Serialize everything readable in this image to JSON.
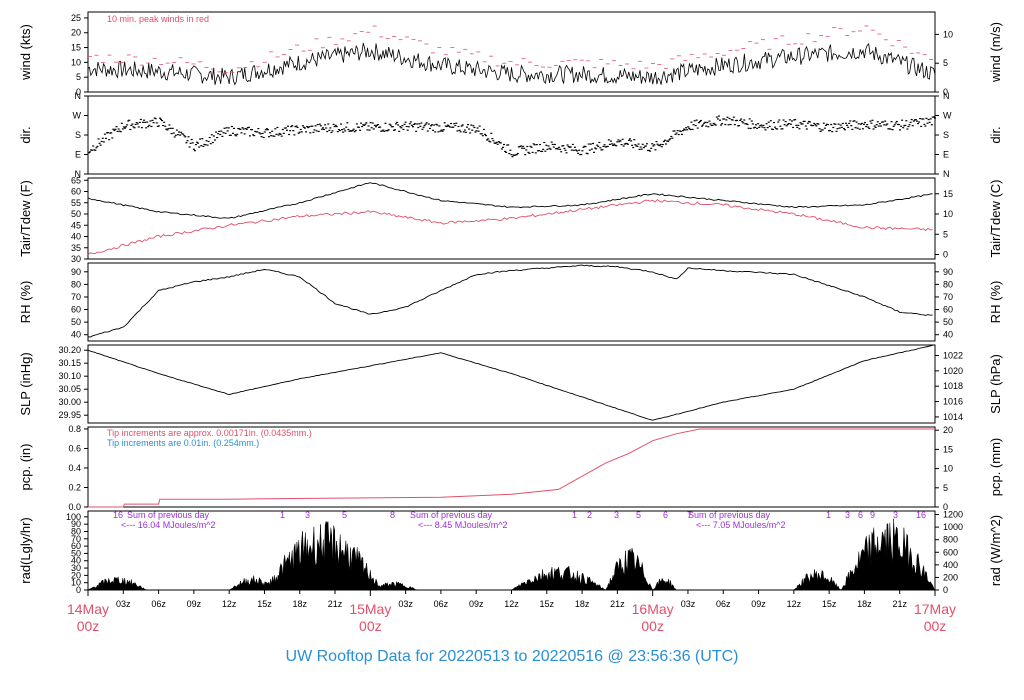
{
  "title": "UW Rooftop Data for 20220513  to  20220516 @ 23:56:36  (UTC)",
  "colors": {
    "black": "#000000",
    "red": "#e0506a",
    "blue": "#2a8fd6",
    "purple": "#9b30d9",
    "date_red": "#e0506a"
  },
  "x_axis": {
    "ticks": [
      "03z",
      "06z",
      "09z",
      "12z",
      "15z",
      "18z",
      "21z",
      "03z",
      "06z",
      "09z",
      "12z",
      "15z",
      "18z",
      "21z",
      "03z",
      "06z",
      "09z",
      "12z",
      "15z",
      "18z",
      "21z"
    ],
    "day_labels": [
      {
        "date": "14May",
        "hour": "00z"
      },
      {
        "date": "15May",
        "hour": "00z"
      },
      {
        "date": "16May",
        "hour": "00z"
      },
      {
        "date": "17May",
        "hour": "00z"
      }
    ]
  },
  "chart_data": [
    {
      "type": "line",
      "id": "wind",
      "ylabel": "wind (kts)",
      "ylabel_right": "wind (m/s)",
      "yticks": [
        "0",
        "5",
        "10",
        "15",
        "20",
        "25"
      ],
      "yticks_right": [
        "0",
        "5",
        "10"
      ],
      "ylim": [
        0,
        27
      ],
      "annotation": "10 min. peak winds in red",
      "x_hours": [
        0,
        6,
        12,
        18,
        24,
        30,
        36,
        42,
        48,
        54,
        60,
        66,
        72
      ],
      "series": [
        {
          "values": [
            8,
            7,
            5,
            10,
            14,
            9,
            6,
            6,
            5,
            9,
            12,
            14,
            6
          ]
        },
        {
          "values": [
            11,
            10,
            7,
            14,
            20,
            13,
            9,
            9,
            8,
            13,
            17,
            21,
            9
          ]
        }
      ]
    },
    {
      "type": "scatter",
      "id": "dir",
      "ylabel": "dir.",
      "ylabel_right": "dir.",
      "yticks": [
        "N",
        "E",
        "S",
        "W",
        "N"
      ],
      "yticks_right": [
        "N",
        "E",
        "S",
        "W",
        "N"
      ],
      "ylim": [
        0,
        360
      ],
      "x_hours": [
        0,
        3,
        6,
        9,
        12,
        15,
        18,
        21,
        24,
        27,
        30,
        33,
        36,
        39,
        42,
        45,
        48,
        51,
        54,
        57,
        60,
        63,
        66,
        69,
        72
      ],
      "values": [
        110,
        225,
        240,
        130,
        200,
        190,
        205,
        215,
        215,
        220,
        215,
        210,
        100,
        130,
        110,
        150,
        120,
        220,
        250,
        225,
        230,
        215,
        230,
        225,
        245
      ]
    },
    {
      "type": "line",
      "id": "temp",
      "ylabel": "Tair/Tdew (F)",
      "ylabel_right": "Tair/Tdew (C)",
      "yticks": [
        "30",
        "35",
        "40",
        "45",
        "50",
        "55",
        "60",
        "65"
      ],
      "yticks_right": [
        "0",
        "5",
        "10",
        "15"
      ],
      "ylim": [
        30,
        66
      ],
      "x_hours": [
        0,
        6,
        12,
        18,
        24,
        30,
        36,
        42,
        48,
        54,
        60,
        66,
        72
      ],
      "series": [
        {
          "name": "Tair",
          "values": [
            57,
            51,
            48,
            55,
            64,
            56,
            53,
            54,
            59,
            56,
            53,
            54,
            59
          ]
        },
        {
          "name": "Tdew",
          "values": [
            32,
            40,
            45,
            49,
            51,
            46,
            48,
            52,
            56,
            54,
            50,
            44,
            43
          ]
        }
      ]
    },
    {
      "type": "line",
      "id": "rh",
      "ylabel": "RH (%)",
      "ylabel_right": "RH (%)",
      "yticks": [
        "40",
        "50",
        "60",
        "70",
        "80",
        "90"
      ],
      "yticks_right": [
        "40",
        "50",
        "60",
        "70",
        "80",
        "90"
      ],
      "ylim": [
        35,
        97
      ],
      "x_hours": [
        0,
        3,
        6,
        9,
        12,
        15,
        18,
        21,
        24,
        27,
        30,
        33,
        36,
        39,
        42,
        45,
        48,
        50,
        51,
        54,
        60,
        66,
        69,
        72
      ],
      "values": [
        38,
        46,
        75,
        82,
        86,
        92,
        86,
        65,
        56,
        62,
        75,
        88,
        91,
        93,
        95,
        94,
        90,
        84,
        93,
        91,
        88,
        70,
        58,
        55
      ]
    },
    {
      "type": "line",
      "id": "slp",
      "ylabel": "SLP (inHg)",
      "ylabel_right": "SLP (hPa)",
      "yticks": [
        "29.95",
        "30.00",
        "30.05",
        "30.10",
        "30.15",
        "30.20"
      ],
      "yticks_right": [
        "1014",
        "1016",
        "1018",
        "1020",
        "1022"
      ],
      "ylim": [
        29.92,
        30.22
      ],
      "x_hours": [
        0,
        6,
        12,
        18,
        24,
        30,
        36,
        42,
        48,
        54,
        60,
        66,
        72
      ],
      "values": [
        30.2,
        30.11,
        30.03,
        30.09,
        30.14,
        30.19,
        30.11,
        30.02,
        29.93,
        30.0,
        30.05,
        30.16,
        30.22
      ]
    },
    {
      "type": "line",
      "id": "pcp",
      "ylabel": "pcp. (in)",
      "ylabel_right": "pcp. (mm)",
      "yticks": [
        "0.0",
        "0.2",
        "0.4",
        "0.6",
        "0.8"
      ],
      "yticks_right": [
        "0",
        "5",
        "10",
        "15",
        "20"
      ],
      "ylim": [
        0,
        0.82
      ],
      "annotations": [
        "Tip increments are approx. 0.00171in. (0.0435mm.)",
        "Tip increments are 0.01in. (0.254mm.)"
      ],
      "x_hours": [
        0,
        3,
        3.1,
        6,
        6.1,
        12,
        20,
        30,
        36,
        40,
        44,
        46,
        48,
        50,
        52,
        54,
        60,
        72
      ],
      "values": [
        0,
        0,
        0.03,
        0.03,
        0.08,
        0.08,
        0.09,
        0.1,
        0.13,
        0.18,
        0.45,
        0.55,
        0.68,
        0.75,
        0.8,
        0.8,
        0.8,
        0.8
      ]
    },
    {
      "type": "area",
      "id": "rad",
      "ylabel": "rad(Lgly/hr)",
      "ylabel_right": "rad (W/m^2)",
      "yticks": [
        "0",
        "10",
        "20",
        "30",
        "40",
        "50",
        "60",
        "70",
        "80",
        "90",
        "100"
      ],
      "yticks_right": [
        "0",
        "200",
        "400",
        "600",
        "800",
        "1000",
        "1200"
      ],
      "ylim": [
        0,
        108
      ],
      "annotations": [
        {
          "count": "16",
          "sum": "Sum of previous day",
          "total": "<--- 16.04 MJoules/m^2"
        },
        {
          "count": "",
          "sum": "Sum of previous day",
          "total": "<--- 8.45 MJoules/m^2"
        },
        {
          "count": "",
          "sum": "Sum of previous day",
          "total": "<--- 7.05 MJoules/m^2"
        }
      ],
      "tick_labels_top": [
        "1",
        "3",
        "5",
        "8",
        "1",
        "2",
        "3",
        "5",
        "6",
        "7",
        "1",
        "3",
        "6",
        "9",
        "3",
        "16"
      ]
    }
  ]
}
